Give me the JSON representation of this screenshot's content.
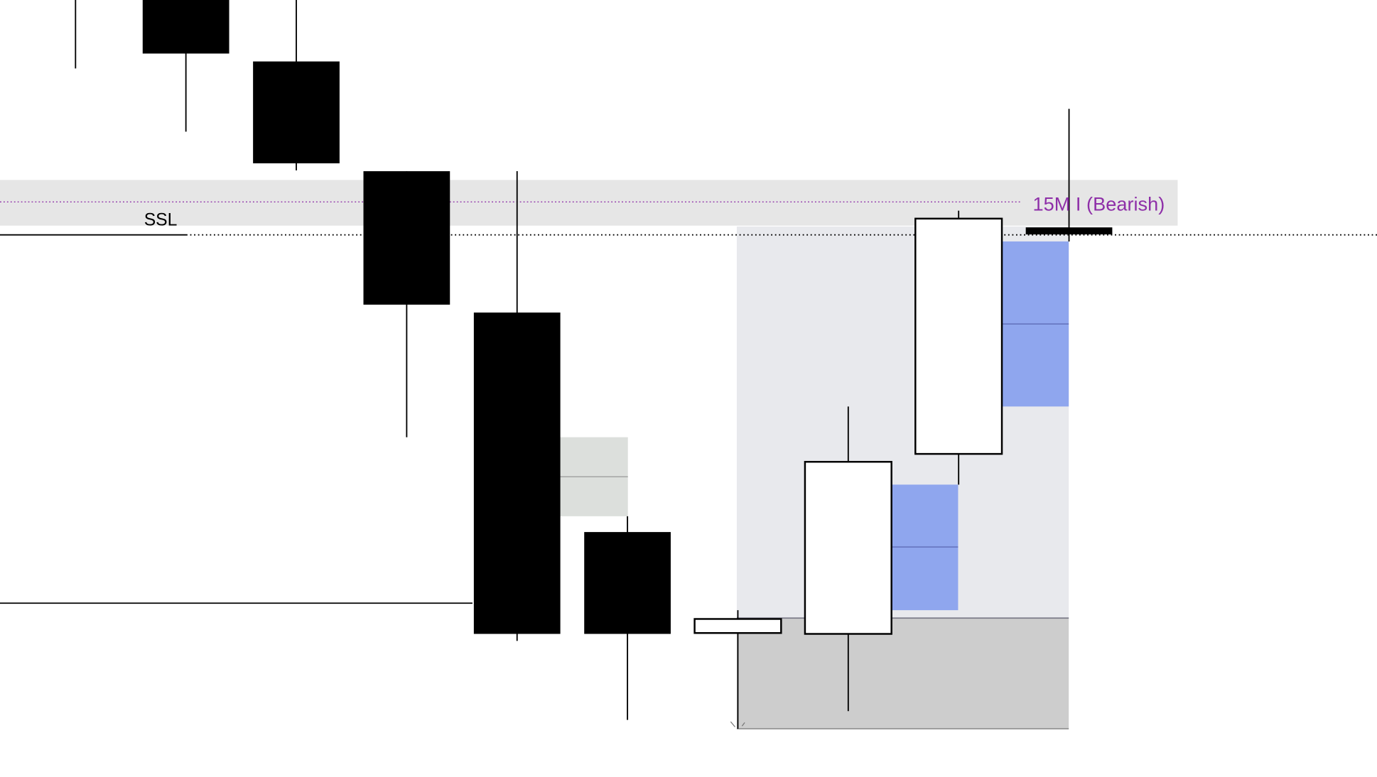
{
  "chart_data": {
    "type": "candlestick",
    "title": "",
    "xlabel": "",
    "ylabel": "",
    "grid": false,
    "candles": [
      {
        "o": 95.0,
        "h": 96.0,
        "l": 82.2,
        "c": 92.0
      },
      {
        "o": 91.0,
        "h": 92.0,
        "l": 75.0,
        "c": 83.9
      },
      {
        "o": 83.0,
        "h": 92.0,
        "l": 70.6,
        "c": 71.4
      },
      {
        "o": 70.5,
        "h": 70.5,
        "l": 40.2,
        "c": 55.3
      },
      {
        "o": 54.4,
        "h": 70.5,
        "l": 17.0,
        "c": 17.8
      },
      {
        "o": 29.4,
        "h": 31.2,
        "l": 8.0,
        "c": 17.8
      },
      {
        "o": 17.9,
        "h": 20.5,
        "l": 7.0,
        "c": 19.5
      },
      {
        "o": 17.8,
        "h": 43.7,
        "l": 9.0,
        "c": 37.4
      },
      {
        "o": 38.3,
        "h": 66.0,
        "l": 34.8,
        "c": 65.1
      },
      {
        "o": 64.1,
        "h": 77.6,
        "l": 62.5,
        "c": 63.3
      }
    ],
    "levels": {
      "ssl": {
        "label": "SSL",
        "price": 63.3
      },
      "old_low": {
        "price": 21.3
      },
      "htf_zone": {
        "label": "15M I (Bearish)",
        "top": 69.5,
        "bottom": 64.3,
        "mid": 67.0,
        "color": "#8e2fa8"
      }
    },
    "zones": {
      "range_upper": {
        "top": 64.2,
        "bottom": 19.6,
        "color": "#e8e9ed"
      },
      "range_lower": {
        "top": 19.6,
        "bottom": 7.0,
        "color": "#cdcdcd"
      },
      "fvgs": [
        {
          "top": 40.2,
          "bottom": 31.2,
          "mid": 35.7,
          "color": "#dcdfdc"
        },
        {
          "top": 34.8,
          "bottom": 20.5,
          "mid": 27.7,
          "color": "#8fa6ee"
        },
        {
          "top": 62.5,
          "bottom": 43.7,
          "mid": 53.1,
          "color": "#8fa6ee"
        }
      ]
    },
    "colors": {
      "bearish": "#000000",
      "bullish": "#ffffff",
      "outline": "#000000"
    }
  }
}
